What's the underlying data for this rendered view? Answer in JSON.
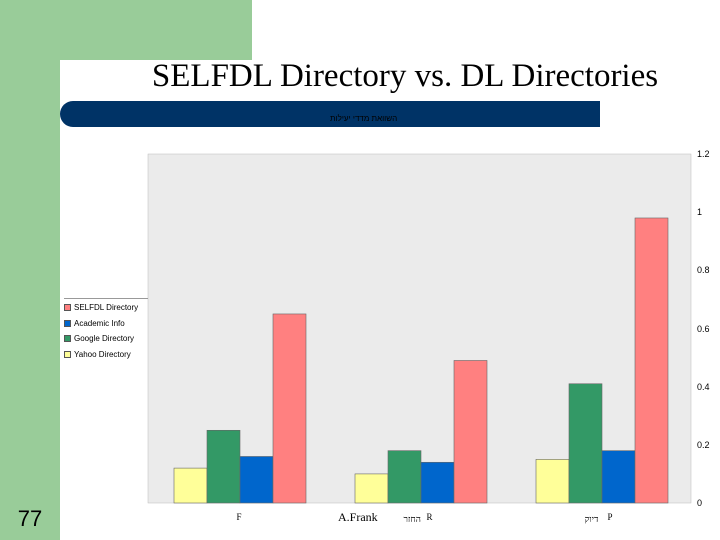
{
  "slide": {
    "title": "SELFDL Directory vs. DL Directories",
    "number": "77",
    "footer": "A.Frank"
  },
  "colors": {
    "side_band": "#99cc99",
    "title_bar": "#003366",
    "plot_background": "#ebebeb"
  },
  "chart_data": {
    "type": "bar",
    "title": "השוואת מדדי יעילות",
    "categories": [
      {
        "label": "F",
        "prefix": ""
      },
      {
        "label": "R",
        "prefix": "החזר"
      },
      {
        "label": "P",
        "prefix": "דיוק"
      }
    ],
    "series": [
      {
        "name": "Yahoo Directory",
        "color": "#ffff99",
        "values": [
          0.12,
          0.1,
          0.15
        ]
      },
      {
        "name": "Google Directory",
        "color": "#339966",
        "values": [
          0.25,
          0.18,
          0.41
        ]
      },
      {
        "name": "Academic Info",
        "color": "#0066cc",
        "values": [
          0.16,
          0.14,
          0.18
        ]
      },
      {
        "name": "SELFDL Directory",
        "color": "#ff8080",
        "values": [
          0.65,
          0.49,
          0.98
        ]
      }
    ],
    "legend_order": [
      "SELFDL Directory",
      "Academic Info",
      "Google Directory",
      "Yahoo Directory"
    ],
    "yticks": [
      "0",
      "0.2",
      "0.4",
      "0.6",
      "0.8",
      "1",
      "1.2"
    ],
    "ylim": [
      0,
      1.2
    ],
    "y_axis_side": "right",
    "legend_position": "left",
    "grid": false
  }
}
